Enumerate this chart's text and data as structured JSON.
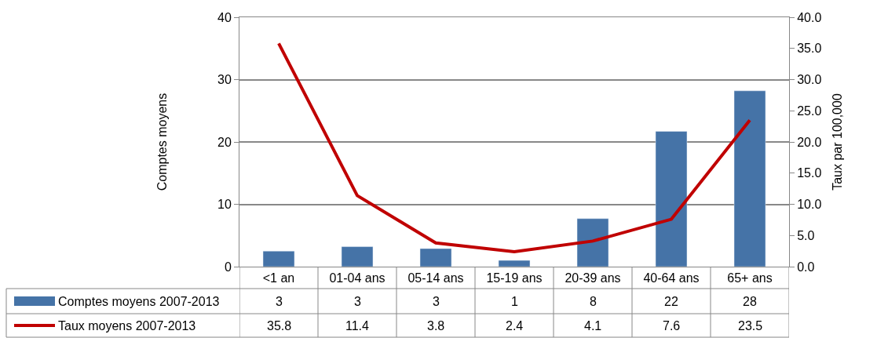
{
  "chart_data": {
    "type": "bar",
    "categories": [
      "<1 an",
      "01-04 ans",
      "05-14 ans",
      "15-19 ans",
      "20-39 ans",
      "40-64 ans",
      "65+ ans"
    ],
    "ylabel": "Comptes moyens",
    "y2label": "Taux par 100,000",
    "ylim": [
      0,
      40
    ],
    "yticks": [
      0,
      10,
      20,
      30,
      40
    ],
    "y2lim": [
      0,
      40
    ],
    "y2ticks": [
      {
        "value": 0,
        "label": "0.0"
      },
      {
        "value": 5,
        "label": "5.0"
      },
      {
        "value": 10,
        "label": "10.0"
      },
      {
        "value": 15,
        "label": "15.0"
      },
      {
        "value": 20,
        "label": "20.0"
      },
      {
        "value": 25,
        "label": "25.0"
      },
      {
        "value": 30,
        "label": "30.0"
      },
      {
        "value": 35,
        "label": "35.0"
      },
      {
        "value": 40,
        "label": "40.0"
      }
    ],
    "grid": "y",
    "legend": "bottom left",
    "series": [
      {
        "name": "Comptes moyens 2007-2013",
        "color": "#4573a7",
        "values": [
          2.5,
          3.2,
          2.9,
          1.0,
          7.7,
          21.7,
          28.2
        ],
        "value_labels": [
          "3",
          "3",
          "3",
          "1",
          "8",
          "22",
          "28"
        ]
      },
      {
        "name": "Taux moyens 2007-2013",
        "type": "line",
        "axis": "y2",
        "color": "#c00000",
        "values": [
          35.8,
          11.4,
          3.8,
          2.4,
          4.1,
          7.6,
          23.5
        ],
        "value_labels": [
          "35.8",
          "11.4",
          "3.8",
          "2.4",
          "4.1",
          "7.6",
          "23.5"
        ]
      }
    ]
  }
}
